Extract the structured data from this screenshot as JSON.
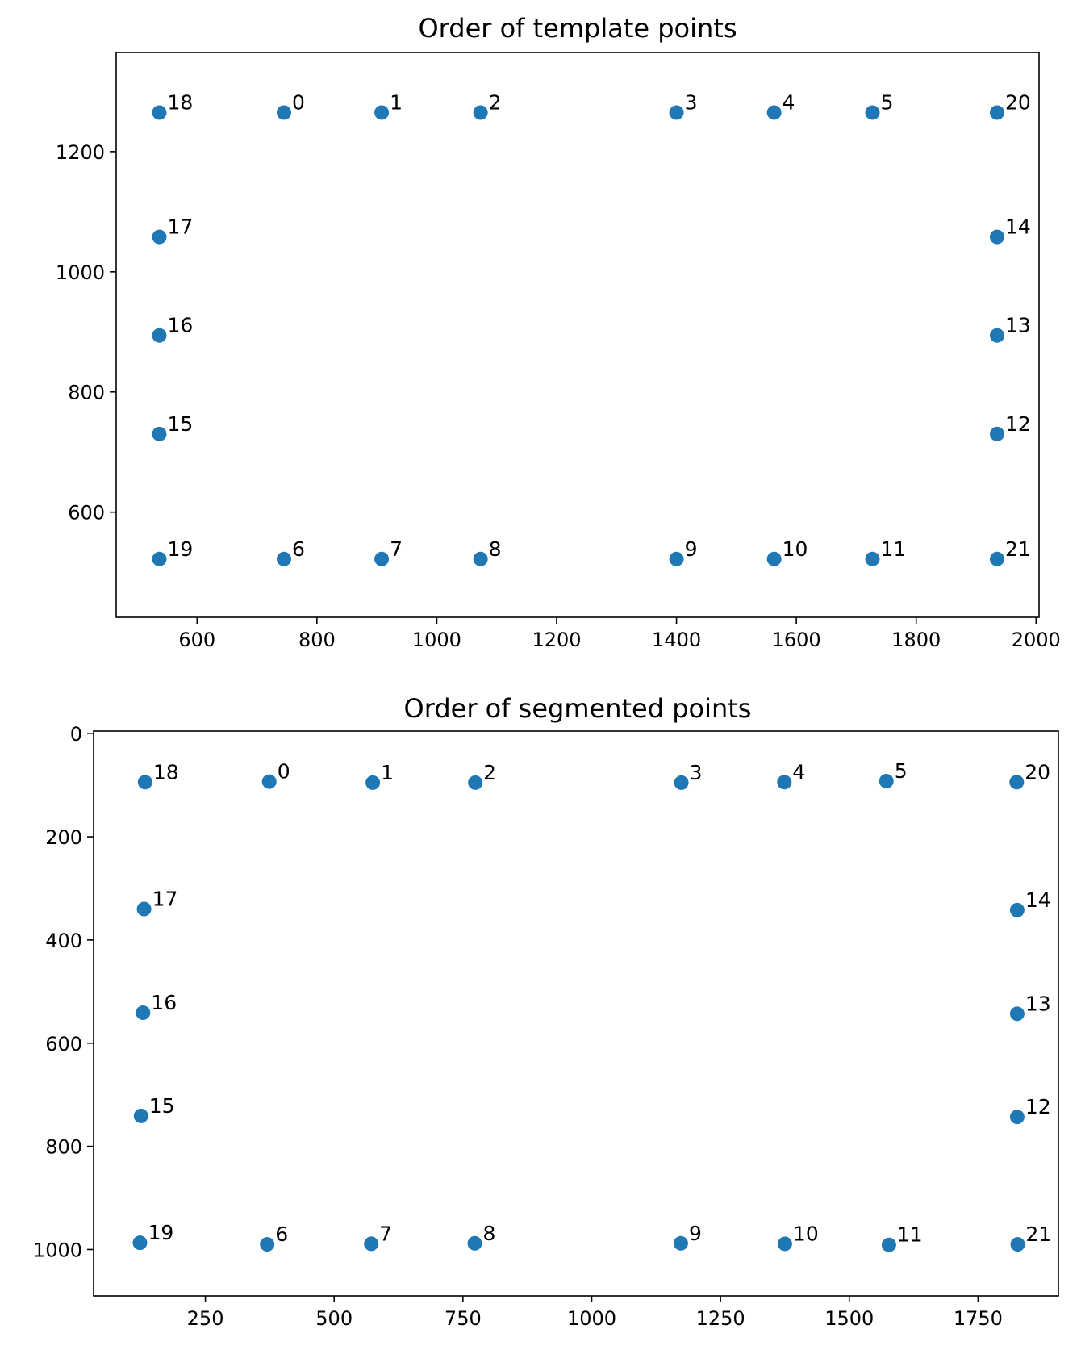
{
  "chart_data": [
    {
      "type": "scatter",
      "title": "Order of template points",
      "xlabel": "",
      "ylabel": "",
      "xlim": [
        465,
        2005
      ],
      "ylim": [
        425,
        1365
      ],
      "y_inverted": false,
      "xticks": [
        600,
        800,
        1000,
        1200,
        1400,
        1600,
        1800,
        2000
      ],
      "yticks": [
        600,
        800,
        1000,
        1200
      ],
      "grid": false,
      "color": "#1f77b4",
      "points": [
        {
          "label": "0",
          "x": 745,
          "y": 1265
        },
        {
          "label": "1",
          "x": 908,
          "y": 1265
        },
        {
          "label": "2",
          "x": 1073,
          "y": 1265
        },
        {
          "label": "3",
          "x": 1400,
          "y": 1265
        },
        {
          "label": "4",
          "x": 1563,
          "y": 1265
        },
        {
          "label": "5",
          "x": 1727,
          "y": 1265
        },
        {
          "label": "6",
          "x": 745,
          "y": 522
        },
        {
          "label": "7",
          "x": 908,
          "y": 522
        },
        {
          "label": "8",
          "x": 1073,
          "y": 522
        },
        {
          "label": "9",
          "x": 1400,
          "y": 522
        },
        {
          "label": "10",
          "x": 1563,
          "y": 522
        },
        {
          "label": "11",
          "x": 1727,
          "y": 522
        },
        {
          "label": "12",
          "x": 1935,
          "y": 730
        },
        {
          "label": "13",
          "x": 1935,
          "y": 894
        },
        {
          "label": "14",
          "x": 1935,
          "y": 1058
        },
        {
          "label": "15",
          "x": 537,
          "y": 730
        },
        {
          "label": "16",
          "x": 537,
          "y": 894
        },
        {
          "label": "17",
          "x": 537,
          "y": 1058
        },
        {
          "label": "18",
          "x": 537,
          "y": 1265
        },
        {
          "label": "19",
          "x": 537,
          "y": 522
        },
        {
          "label": "20",
          "x": 1935,
          "y": 1265
        },
        {
          "label": "21",
          "x": 1935,
          "y": 522
        }
      ]
    },
    {
      "type": "scatter",
      "title": "Order of segmented points",
      "xlabel": "",
      "ylabel": "",
      "xlim": [
        33,
        1906
      ],
      "ylim": [
        1090,
        -5
      ],
      "y_inverted": true,
      "xticks": [
        250,
        500,
        750,
        1000,
        1250,
        1500,
        1750
      ],
      "yticks": [
        0,
        200,
        400,
        600,
        800,
        1000
      ],
      "grid": false,
      "color": "#1f77b4",
      "points": [
        {
          "label": "0",
          "x": 374,
          "y": 93
        },
        {
          "label": "1",
          "x": 575,
          "y": 95
        },
        {
          "label": "2",
          "x": 774,
          "y": 95
        },
        {
          "label": "3",
          "x": 1174,
          "y": 95
        },
        {
          "label": "4",
          "x": 1374,
          "y": 94
        },
        {
          "label": "5",
          "x": 1572,
          "y": 92
        },
        {
          "label": "6",
          "x": 370,
          "y": 990
        },
        {
          "label": "7",
          "x": 572,
          "y": 989
        },
        {
          "label": "8",
          "x": 773,
          "y": 988
        },
        {
          "label": "9",
          "x": 1173,
          "y": 988
        },
        {
          "label": "10",
          "x": 1375,
          "y": 989
        },
        {
          "label": "11",
          "x": 1577,
          "y": 991
        },
        {
          "label": "12",
          "x": 1826,
          "y": 743
        },
        {
          "label": "13",
          "x": 1826,
          "y": 543
        },
        {
          "label": "14",
          "x": 1826,
          "y": 342
        },
        {
          "label": "15",
          "x": 125,
          "y": 741
        },
        {
          "label": "16",
          "x": 129,
          "y": 541
        },
        {
          "label": "17",
          "x": 131,
          "y": 340
        },
        {
          "label": "18",
          "x": 133,
          "y": 94
        },
        {
          "label": "19",
          "x": 123,
          "y": 987
        },
        {
          "label": "20",
          "x": 1825,
          "y": 94
        },
        {
          "label": "21",
          "x": 1827,
          "y": 990
        }
      ]
    }
  ]
}
